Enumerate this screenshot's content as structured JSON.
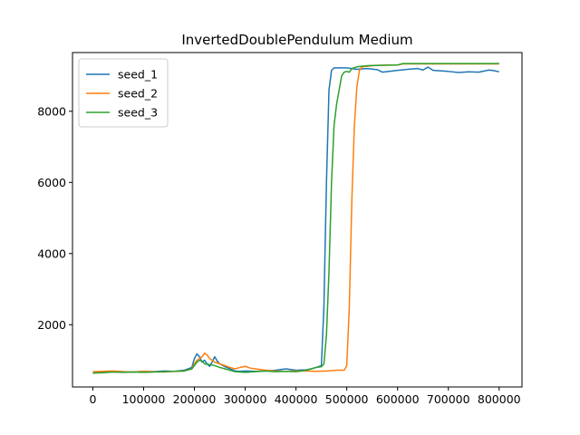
{
  "chart_data": {
    "type": "line",
    "title": "InvertedDoublePendulum Medium",
    "xlabel": "",
    "ylabel": "",
    "xlim": [
      -40000,
      845000
    ],
    "ylim": [
      250,
      9650
    ],
    "xticks": [
      0,
      100000,
      200000,
      300000,
      400000,
      500000,
      600000,
      700000,
      800000
    ],
    "xtick_labels": [
      "0",
      "100000",
      "200000",
      "300000",
      "400000",
      "500000",
      "600000",
      "700000",
      "800000"
    ],
    "yticks": [
      2000,
      4000,
      6000,
      8000
    ],
    "ytick_labels": [
      "2000",
      "4000",
      "6000",
      "8000"
    ],
    "grid": false,
    "legend_position": "upper-left",
    "series": [
      {
        "name": "seed_1",
        "color": "#1f77b4",
        "points": [
          [
            0,
            660
          ],
          [
            20000,
            670
          ],
          [
            40000,
            690
          ],
          [
            60000,
            680
          ],
          [
            80000,
            670
          ],
          [
            100000,
            690
          ],
          [
            120000,
            680
          ],
          [
            140000,
            700
          ],
          [
            160000,
            690
          ],
          [
            180000,
            720
          ],
          [
            195000,
            800
          ],
          [
            200000,
            1050
          ],
          [
            205000,
            1180
          ],
          [
            210000,
            1100
          ],
          [
            215000,
            950
          ],
          [
            220000,
            1000
          ],
          [
            225000,
            900
          ],
          [
            230000,
            830
          ],
          [
            235000,
            950
          ],
          [
            240000,
            1100
          ],
          [
            245000,
            980
          ],
          [
            250000,
            900
          ],
          [
            260000,
            820
          ],
          [
            270000,
            760
          ],
          [
            280000,
            700
          ],
          [
            290000,
            690
          ],
          [
            300000,
            700
          ],
          [
            320000,
            690
          ],
          [
            340000,
            700
          ],
          [
            360000,
            720
          ],
          [
            380000,
            760
          ],
          [
            400000,
            720
          ],
          [
            420000,
            730
          ],
          [
            430000,
            760
          ],
          [
            440000,
            800
          ],
          [
            450000,
            850
          ],
          [
            455000,
            2500
          ],
          [
            460000,
            6000
          ],
          [
            465000,
            8600
          ],
          [
            470000,
            9150
          ],
          [
            475000,
            9220
          ],
          [
            500000,
            9220
          ],
          [
            520000,
            9180
          ],
          [
            540000,
            9200
          ],
          [
            560000,
            9170
          ],
          [
            570000,
            9100
          ],
          [
            600000,
            9150
          ],
          [
            620000,
            9180
          ],
          [
            640000,
            9200
          ],
          [
            650000,
            9160
          ],
          [
            660000,
            9240
          ],
          [
            670000,
            9150
          ],
          [
            700000,
            9120
          ],
          [
            720000,
            9090
          ],
          [
            740000,
            9110
          ],
          [
            760000,
            9100
          ],
          [
            780000,
            9160
          ],
          [
            790000,
            9140
          ],
          [
            800000,
            9110
          ]
        ]
      },
      {
        "name": "seed_2",
        "color": "#ff7f0e",
        "points": [
          [
            0,
            680
          ],
          [
            20000,
            690
          ],
          [
            40000,
            700
          ],
          [
            60000,
            680
          ],
          [
            80000,
            670
          ],
          [
            100000,
            690
          ],
          [
            120000,
            680
          ],
          [
            140000,
            670
          ],
          [
            160000,
            690
          ],
          [
            180000,
            700
          ],
          [
            195000,
            760
          ],
          [
            200000,
            900
          ],
          [
            205000,
            1000
          ],
          [
            210000,
            1050
          ],
          [
            215000,
            1100
          ],
          [
            220000,
            1200
          ],
          [
            225000,
            1150
          ],
          [
            230000,
            1050
          ],
          [
            240000,
            950
          ],
          [
            250000,
            900
          ],
          [
            260000,
            850
          ],
          [
            270000,
            800
          ],
          [
            280000,
            760
          ],
          [
            290000,
            800
          ],
          [
            300000,
            830
          ],
          [
            310000,
            780
          ],
          [
            320000,
            760
          ],
          [
            340000,
            720
          ],
          [
            360000,
            700
          ],
          [
            380000,
            690
          ],
          [
            400000,
            700
          ],
          [
            420000,
            700
          ],
          [
            440000,
            690
          ],
          [
            460000,
            700
          ],
          [
            480000,
            720
          ],
          [
            495000,
            720
          ],
          [
            500000,
            850
          ],
          [
            505000,
            2500
          ],
          [
            510000,
            5500
          ],
          [
            515000,
            7600
          ],
          [
            520000,
            8700
          ],
          [
            525000,
            9150
          ],
          [
            530000,
            9250
          ],
          [
            550000,
            9280
          ],
          [
            580000,
            9300
          ],
          [
            600000,
            9300
          ],
          [
            610000,
            9330
          ],
          [
            640000,
            9330
          ],
          [
            700000,
            9330
          ],
          [
            760000,
            9330
          ],
          [
            800000,
            9330
          ]
        ]
      },
      {
        "name": "seed_3",
        "color": "#2ca02c",
        "points": [
          [
            0,
            640
          ],
          [
            20000,
            650
          ],
          [
            40000,
            670
          ],
          [
            60000,
            660
          ],
          [
            80000,
            670
          ],
          [
            100000,
            660
          ],
          [
            120000,
            670
          ],
          [
            140000,
            680
          ],
          [
            160000,
            690
          ],
          [
            180000,
            700
          ],
          [
            195000,
            760
          ],
          [
            200000,
            850
          ],
          [
            205000,
            950
          ],
          [
            210000,
            1000
          ],
          [
            215000,
            980
          ],
          [
            220000,
            900
          ],
          [
            230000,
            880
          ],
          [
            240000,
            850
          ],
          [
            250000,
            800
          ],
          [
            260000,
            760
          ],
          [
            270000,
            720
          ],
          [
            280000,
            680
          ],
          [
            300000,
            660
          ],
          [
            320000,
            680
          ],
          [
            340000,
            700
          ],
          [
            360000,
            680
          ],
          [
            380000,
            690
          ],
          [
            400000,
            680
          ],
          [
            420000,
            720
          ],
          [
            430000,
            760
          ],
          [
            440000,
            800
          ],
          [
            450000,
            820
          ],
          [
            455000,
            900
          ],
          [
            460000,
            1700
          ],
          [
            465000,
            3500
          ],
          [
            470000,
            6000
          ],
          [
            475000,
            7600
          ],
          [
            480000,
            8200
          ],
          [
            485000,
            8600
          ],
          [
            490000,
            9000
          ],
          [
            495000,
            9100
          ],
          [
            500000,
            9120
          ],
          [
            505000,
            9100
          ],
          [
            510000,
            9200
          ],
          [
            520000,
            9250
          ],
          [
            540000,
            9280
          ],
          [
            560000,
            9290
          ],
          [
            600000,
            9300
          ],
          [
            610000,
            9340
          ],
          [
            650000,
            9340
          ],
          [
            700000,
            9340
          ],
          [
            750000,
            9340
          ],
          [
            800000,
            9340
          ]
        ]
      }
    ]
  }
}
